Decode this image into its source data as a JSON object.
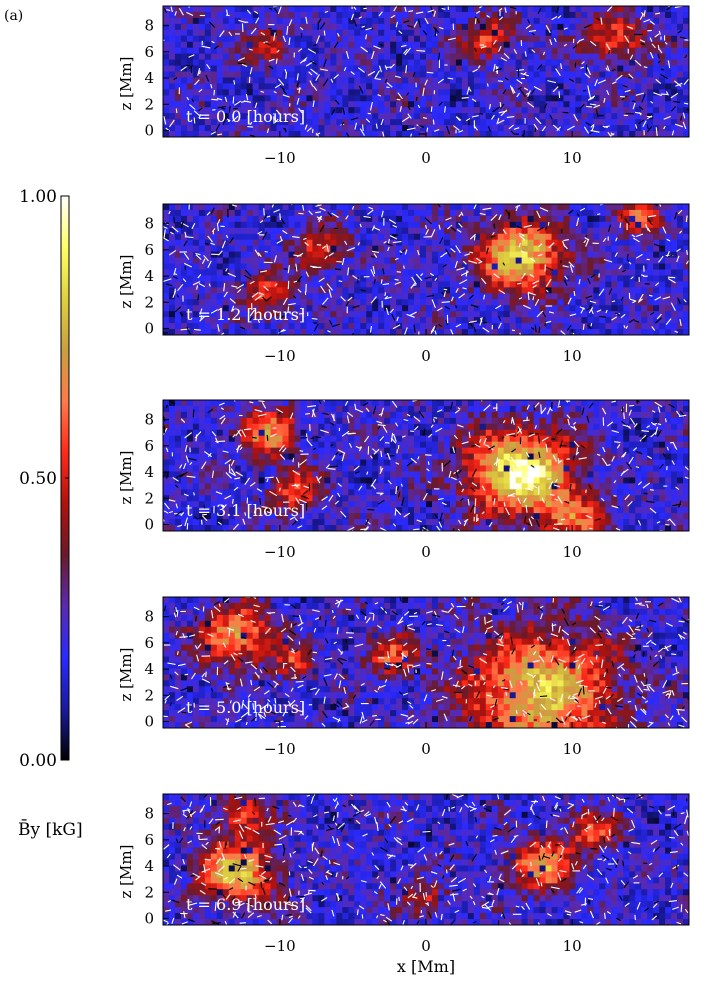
{
  "figure": {
    "panel_label": "(a)"
  },
  "colorbar": {
    "ticks": [
      "1.00",
      "0.50",
      "0.00"
    ],
    "tick_values": [
      1.0,
      0.5,
      0.0
    ],
    "range": [
      0.0,
      1.0
    ],
    "label": "B̄y [kG]",
    "colors": [
      "#000000",
      "#1a1aa0",
      "#2a2aff",
      "#5a2ab0",
      "#6a1a2a",
      "#b0120e",
      "#ff2a1a",
      "#ff7a4a",
      "#c8a040",
      "#e0d040",
      "#ffff66",
      "#ffffff"
    ]
  },
  "chart_data": [
    {
      "type": "heatmap",
      "annotation": "t = 0.0 [hours]",
      "t_hours": 0.0,
      "xlabel": "",
      "ylabel": "z [Mm]",
      "xlim": [
        -18,
        18
      ],
      "ylim": [
        9.5,
        -0.5
      ],
      "xticks": [
        -10,
        0,
        10
      ],
      "xtick_labels": [
        "−10",
        "0",
        "10"
      ],
      "yticks": [
        0,
        2,
        4,
        6,
        8
      ],
      "ytick_labels": [
        "0",
        "2",
        "4",
        "6",
        "8"
      ],
      "overlay": "velocity arrows"
    },
    {
      "type": "heatmap",
      "annotation": "t = 1.2 [hours]",
      "t_hours": 1.2,
      "xlabel": "",
      "ylabel": "z [Mm]",
      "xlim": [
        -18,
        18
      ],
      "ylim": [
        9.5,
        -0.5
      ],
      "xticks": [
        -10,
        0,
        10
      ],
      "xtick_labels": [
        "−10",
        "0",
        "10"
      ],
      "yticks": [
        0,
        2,
        4,
        6,
        8
      ],
      "ytick_labels": [
        "0",
        "2",
        "4",
        "6",
        "8"
      ],
      "overlay": "velocity arrows"
    },
    {
      "type": "heatmap",
      "annotation": "t = 3.1 [hours]",
      "t_hours": 3.1,
      "xlabel": "",
      "ylabel": "z [Mm]",
      "xlim": [
        -18,
        18
      ],
      "ylim": [
        9.5,
        -0.5
      ],
      "xticks": [
        -10,
        0,
        10
      ],
      "xtick_labels": [
        "−10",
        "0",
        "10"
      ],
      "yticks": [
        0,
        2,
        4,
        6,
        8
      ],
      "ytick_labels": [
        "0",
        "2",
        "4",
        "6",
        "8"
      ],
      "overlay": "velocity arrows"
    },
    {
      "type": "heatmap",
      "annotation": "t = 5.0 [hours]",
      "t_hours": 5.0,
      "xlabel": "",
      "ylabel": "z [Mm]",
      "xlim": [
        -18,
        18
      ],
      "ylim": [
        9.5,
        -0.5
      ],
      "xticks": [
        -10,
        0,
        10
      ],
      "xtick_labels": [
        "−10",
        "0",
        "10"
      ],
      "yticks": [
        0,
        2,
        4,
        6,
        8
      ],
      "ytick_labels": [
        "0",
        "2",
        "4",
        "6",
        "8"
      ],
      "overlay": "velocity arrows"
    },
    {
      "type": "heatmap",
      "annotation": "t = 6.9 [hours]",
      "t_hours": 6.9,
      "xlabel": "x [Mm]",
      "ylabel": "z [Mm]",
      "xlim": [
        -18,
        18
      ],
      "ylim": [
        9.5,
        -0.5
      ],
      "xticks": [
        -10,
        0,
        10
      ],
      "xtick_labels": [
        "−10",
        "0",
        "10"
      ],
      "yticks": [
        0,
        2,
        4,
        6,
        8
      ],
      "ytick_labels": [
        "0",
        "2",
        "4",
        "6",
        "8"
      ],
      "overlay": "velocity arrows"
    }
  ]
}
